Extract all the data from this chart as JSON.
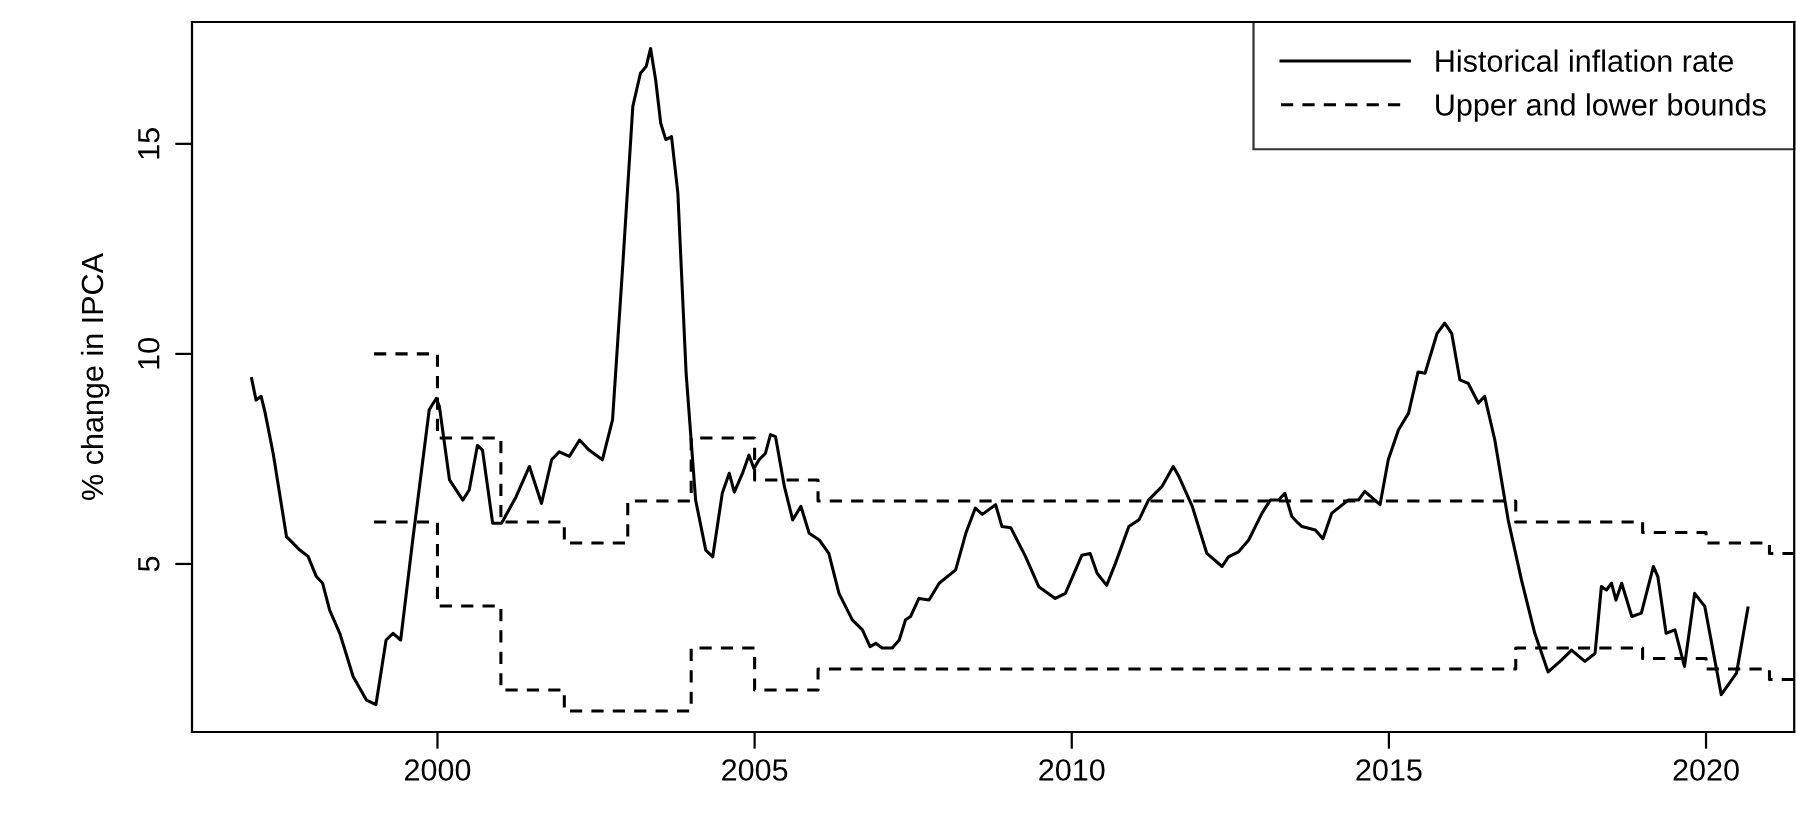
{
  "chart_data": {
    "type": "line",
    "ylabel": "% change in IPCA",
    "xlim": [
      1996.13,
      2021.39
    ],
    "ylim": [
      1.0,
      17.9
    ],
    "xticks": [
      2000,
      2005,
      2010,
      2015,
      2020
    ],
    "yticks": [
      5,
      10,
      15
    ],
    "grid": false,
    "legend": "top right",
    "marker": "none",
    "series": [
      {
        "name": "Historical inflation rate",
        "color": "#000000",
        "line_style": "solid",
        "x": [
          1997.07,
          1997.14,
          1997.22,
          1997.28,
          1997.41,
          1997.62,
          1997.83,
          1997.96,
          1998.09,
          1998.19,
          1998.3,
          1998.46,
          1998.67,
          1998.88,
          1999.03,
          1999.19,
          1999.3,
          1999.42,
          1999.61,
          1999.87,
          1999.98,
          2000.03,
          2000.19,
          2000.4,
          2000.5,
          2000.63,
          2000.71,
          2000.87,
          2001.01,
          2001.24,
          2001.45,
          2001.64,
          2001.8,
          2001.92,
          2002.08,
          2002.24,
          2002.39,
          2002.6,
          2002.76,
          2002.92,
          2003.08,
          2003.2,
          2003.29,
          2003.36,
          2003.44,
          2003.52,
          2003.6,
          2003.69,
          2003.79,
          2003.92,
          2004.07,
          2004.23,
          2004.34,
          2004.49,
          2004.6,
          2004.68,
          2004.81,
          2004.91,
          2004.99,
          2005.07,
          2005.17,
          2005.25,
          2005.33,
          2005.47,
          2005.6,
          2005.73,
          2005.86,
          2006.02,
          2006.17,
          2006.33,
          2006.54,
          2006.7,
          2006.82,
          2006.91,
          2007.01,
          2007.17,
          2007.28,
          2007.38,
          2007.46,
          2007.59,
          2007.75,
          2007.91,
          2008.17,
          2008.33,
          2008.48,
          2008.59,
          2008.8,
          2008.9,
          2009.04,
          2009.27,
          2009.48,
          2009.74,
          2009.9,
          2010.16,
          2010.29,
          2010.4,
          2010.55,
          2010.69,
          2010.9,
          2011.06,
          2011.21,
          2011.42,
          2011.6,
          2011.69,
          2011.9,
          2012.13,
          2012.37,
          2012.47,
          2012.63,
          2012.79,
          2013.0,
          2013.13,
          2013.26,
          2013.36,
          2013.47,
          2013.57,
          2013.63,
          2013.84,
          2013.96,
          2014.1,
          2014.36,
          2014.52,
          2014.62,
          2014.86,
          2014.99,
          2015.15,
          2015.31,
          2015.46,
          2015.57,
          2015.76,
          2015.88,
          2015.99,
          2016.12,
          2016.25,
          2016.41,
          2016.51,
          2016.67,
          2016.88,
          2017.09,
          2017.3,
          2017.51,
          2017.72,
          2017.88,
          2018.09,
          2018.25,
          2018.35,
          2018.43,
          2018.51,
          2018.58,
          2018.67,
          2018.83,
          2018.98,
          2019.17,
          2019.24,
          2019.37,
          2019.51,
          2019.66,
          2019.82,
          2019.98,
          2020.24,
          2020.48,
          2020.66
        ],
        "values": [
          9.41,
          8.9,
          8.99,
          8.62,
          7.63,
          5.65,
          5.33,
          5.18,
          4.7,
          4.54,
          3.9,
          3.35,
          2.32,
          1.76,
          1.65,
          3.19,
          3.35,
          3.19,
          5.57,
          8.67,
          8.94,
          8.75,
          7.0,
          6.52,
          6.76,
          7.82,
          7.71,
          5.97,
          5.97,
          6.6,
          7.32,
          6.44,
          7.48,
          7.67,
          7.56,
          7.95,
          7.71,
          7.48,
          8.43,
          12.08,
          15.89,
          16.68,
          16.84,
          17.27,
          16.52,
          15.49,
          15.1,
          15.17,
          13.83,
          9.54,
          6.52,
          5.33,
          5.17,
          6.68,
          7.16,
          6.71,
          7.16,
          7.59,
          7.27,
          7.48,
          7.63,
          8.08,
          8.03,
          6.84,
          6.05,
          6.37,
          5.73,
          5.57,
          5.25,
          4.3,
          3.67,
          3.43,
          3.03,
          3.11,
          3.0,
          3.0,
          3.19,
          3.67,
          3.75,
          4.18,
          4.14,
          4.54,
          4.86,
          5.73,
          6.33,
          6.18,
          6.41,
          5.89,
          5.86,
          5.18,
          4.46,
          4.18,
          4.3,
          5.21,
          5.25,
          4.78,
          4.49,
          5.02,
          5.89,
          6.05,
          6.52,
          6.84,
          7.32,
          7.08,
          6.37,
          5.25,
          4.94,
          5.17,
          5.29,
          5.57,
          6.21,
          6.52,
          6.52,
          6.68,
          6.13,
          5.97,
          5.89,
          5.81,
          5.6,
          6.21,
          6.52,
          6.52,
          6.73,
          6.41,
          7.48,
          8.19,
          8.59,
          9.57,
          9.54,
          10.49,
          10.73,
          10.49,
          9.38,
          9.3,
          8.83,
          8.99,
          7.95,
          6.05,
          4.62,
          3.35,
          2.43,
          2.71,
          2.95,
          2.68,
          2.87,
          4.46,
          4.38,
          4.54,
          4.14,
          4.54,
          3.75,
          3.83,
          4.94,
          4.7,
          3.35,
          3.43,
          2.56,
          4.3,
          3.99,
          1.89,
          2.4,
          3.95
        ]
      },
      {
        "name": "Upper and lower bounds",
        "type": "step",
        "color": "#000000",
        "line_style": "dashed",
        "x": [
          1999,
          2000,
          2001,
          2002,
          2003,
          2004,
          2005,
          2006,
          2007,
          2008,
          2009,
          2010,
          2011,
          2012,
          2013,
          2014,
          2015,
          2016,
          2017,
          2018,
          2019,
          2020,
          2021,
          2021.39
        ],
        "values": [
          10,
          8,
          6,
          5.5,
          6.5,
          8,
          7,
          6.5,
          6.5,
          6.5,
          6.5,
          6.5,
          6.5,
          6.5,
          6.5,
          6.5,
          6.5,
          6.5,
          6,
          6,
          5.75,
          5.5,
          5.25,
          5.25
        ]
      },
      {
        "type": "step",
        "color": "#000000",
        "line_style": "dashed",
        "x": [
          1999,
          2000,
          2001,
          2002,
          2003,
          2004,
          2005,
          2006,
          2007,
          2008,
          2009,
          2010,
          2011,
          2012,
          2013,
          2014,
          2015,
          2016,
          2017,
          2018,
          2019,
          2020,
          2021,
          2021.39
        ],
        "values": [
          6,
          4,
          2,
          1.5,
          1.5,
          3,
          2,
          2.5,
          2.5,
          2.5,
          2.5,
          2.5,
          2.5,
          2.5,
          2.5,
          2.5,
          2.5,
          2.5,
          3,
          3,
          2.75,
          2.5,
          2.25,
          2.25
        ]
      }
    ]
  }
}
